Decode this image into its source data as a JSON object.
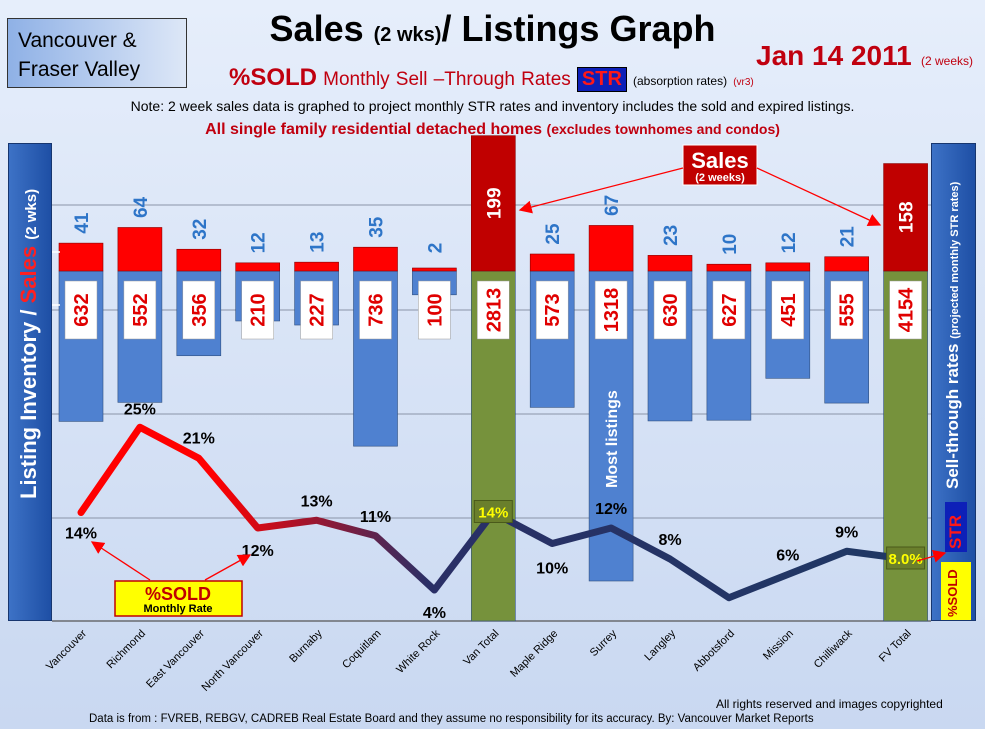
{
  "header": {
    "region_line1": "Vancouver &",
    "region_line2": "Fraser Valley",
    "title_main": "Sales",
    "title_sub": "(2 wks)",
    "title_end": "/ Listings Graph",
    "date": "Jan 14 2011",
    "date_note": "(2 weeks)",
    "subtitle_sold": "%SOLD",
    "subtitle_monthly": "Monthly",
    "subtitle_sell": "ell",
    "subtitle_through": "hrough",
    "subtitle_rates": "ates",
    "str_badge": "STR",
    "absorption": "(absorption rates)",
    "version": "(vr3)",
    "note": "Note: 2 week sales data is graphed to project monthly STR rates and inventory includes the sold and expired listings.",
    "subtitle2": "All single family residential detached homes",
    "subtitle2_small": "(excludes townhomes and condos)"
  },
  "left_axis": {
    "label_listing": "Listing Inventory /",
    "label_sales": "Sales",
    "label_wks": "(2  wks)"
  },
  "right_axis": {
    "label": "Sell-through rates",
    "label_small": "(projected monthly STR rates)",
    "str": "STR",
    "sold": "%SOLD"
  },
  "annotations": {
    "sales_callout": "Sales",
    "sales_callout_sub": "(2 weeks)",
    "sold_callout": "%SOLD",
    "sold_callout_sub": "Monthly Rate",
    "most_listings": "Most listings"
  },
  "footer": {
    "rights": "All rights reserved and  images copyrighted",
    "source": "Data is from : FVREB, REBGV, CADREB Real Estate Board and they assume no responsibility for its accuracy. By: Vancouver Market Reports"
  },
  "chart_data": {
    "type": "bar",
    "categories": [
      "Vancouver",
      "Richmond",
      "East Vancouver",
      "North Vancouver",
      "Burnaby",
      "Coquitlam",
      "White Rock",
      "Van Total",
      "Maple Ridge",
      "Surrey",
      "Langley",
      "Abbotsford",
      "Mission",
      "Chilliwack",
      "FV Total"
    ],
    "series": [
      {
        "name": "Sales",
        "values": [
          41,
          64,
          32,
          12,
          13,
          35,
          2,
          199,
          25,
          67,
          23,
          10,
          12,
          21,
          158
        ]
      },
      {
        "name": "Listing Inventory",
        "values": [
          632,
          552,
          356,
          210,
          227,
          736,
          100,
          2813,
          573,
          1318,
          630,
          627,
          451,
          555,
          4154
        ]
      },
      {
        "name": "%SOLD",
        "values": [
          14,
          25,
          21,
          12,
          13,
          11,
          4,
          14,
          10,
          12,
          8,
          3,
          6,
          9,
          8.0
        ]
      }
    ],
    "sold_labels": [
      "14%",
      "25%",
      "21%",
      "12%",
      "13%",
      "11%",
      "4%",
      "14%",
      "10%",
      "12%",
      "8%",
      "",
      "6%",
      "9%",
      "8.0%"
    ],
    "colors": {
      "sales": "#ff0000",
      "sales_total": "#c00000",
      "inventory": "#4f81d0",
      "total_bar": "#76923c",
      "sold_high": "#ff0000",
      "sold_low": "#1f3864"
    }
  }
}
